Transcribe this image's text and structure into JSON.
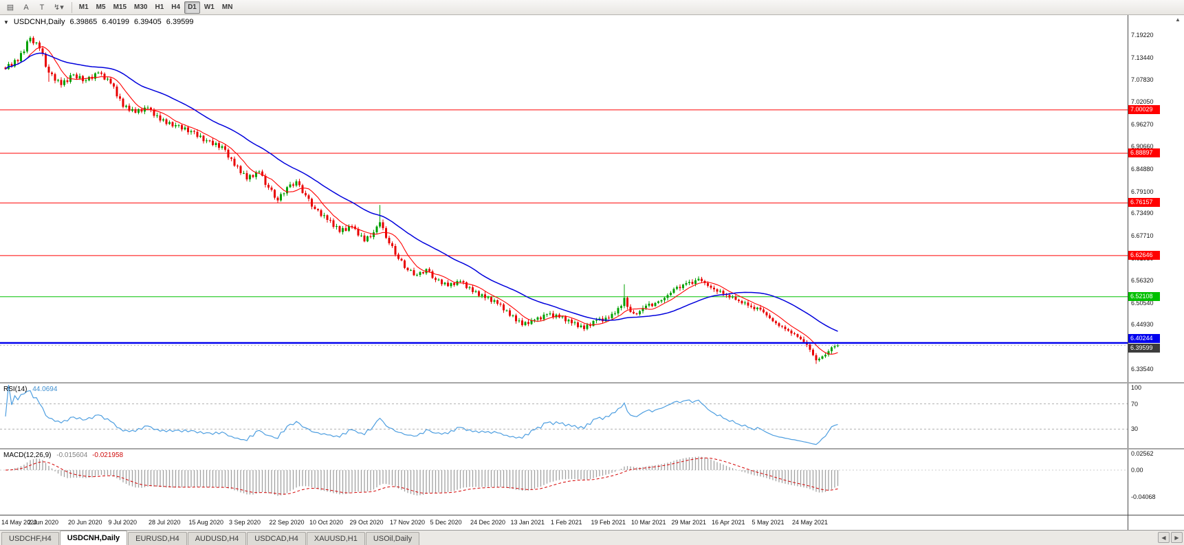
{
  "toolbar": {
    "icon_buttons": [
      {
        "name": "chart-layout-icon",
        "glyph": "▤"
      },
      {
        "name": "text-annotation-icon",
        "glyph": "A"
      },
      {
        "name": "text-tool-icon",
        "glyph": "T"
      },
      {
        "name": "quick-tools-dropdown-icon",
        "glyph": "↯▾"
      }
    ],
    "timeframes": [
      {
        "label": "M1"
      },
      {
        "label": "M5"
      },
      {
        "label": "M15"
      },
      {
        "label": "M30"
      },
      {
        "label": "H1"
      },
      {
        "label": "H4"
      },
      {
        "label": "D1",
        "active": true
      },
      {
        "label": "W1"
      },
      {
        "label": "MN"
      }
    ]
  },
  "chart": {
    "collapse_glyph": "▼",
    "scroll_glyph": "▲",
    "ohlc": {
      "symbol": "USDCNH,Daily",
      "open": "6.39865",
      "high": "6.40199",
      "low": "6.39405",
      "close": "6.39599"
    }
  },
  "rsi_panel": {
    "name": "RSI(14)",
    "value": "44.0694",
    "axis_labels": [
      {
        "text": "100",
        "value": 100
      },
      {
        "text": "70",
        "value": 70
      },
      {
        "text": "30",
        "value": 30
      }
    ]
  },
  "macd_panel": {
    "name": "MACD(12,26,9)",
    "value_main": "-0.015604",
    "value_sig": "-0.021958",
    "axis_labels": [
      {
        "text": "0.02562",
        "value": 0.02562
      },
      {
        "text": "0.00",
        "value": 0
      },
      {
        "text": "-0.04068",
        "value": -0.04068
      }
    ]
  },
  "tabs": {
    "nav_left": "◀",
    "nav_right": "▶",
    "items": [
      {
        "label": "USDCHF,H4"
      },
      {
        "label": "USDCNH,Daily",
        "active": true
      },
      {
        "label": "EURUSD,H4"
      },
      {
        "label": "AUDUSD,H4"
      },
      {
        "label": "USDCAD,H4"
      },
      {
        "label": "XAUUSD,H1"
      },
      {
        "label": "USOil,Daily"
      }
    ]
  },
  "chart_data": {
    "type": "candlestick",
    "symbol": "USDCNH",
    "period": "Daily",
    "price_axis": {
      "labels": [
        "7.19220",
        "7.13440",
        "7.07830",
        "7.02050",
        "6.96270",
        "6.90660",
        "6.84880",
        "6.79100",
        "6.73490",
        "6.67710",
        "6.61930",
        "6.56320",
        "6.50540",
        "6.44930",
        "6.39150",
        "6.33540"
      ]
    },
    "dates": [
      "14 May 2020",
      "2 Jun 2020",
      "20 Jun 2020",
      "9 Jul 2020",
      "28 Jul 2020",
      "15 Aug 2020",
      "3 Sep 2020",
      "22 Sep 2020",
      "10 Oct 2020",
      "29 Oct 2020",
      "17 Nov 2020",
      "5 Dec 2020",
      "24 Dec 2020",
      "13 Jan 2021",
      "1 Feb 2021",
      "19 Feb 2021",
      "10 Mar 2021",
      "29 Mar 2021",
      "16 Apr 2021",
      "5 May 2021",
      "24 May 2021"
    ],
    "date_step": 13,
    "colors": {
      "up": "#00a000",
      "down": "#e80000"
    },
    "ma": {
      "fast_period": 8,
      "slow_period": 32,
      "fast_color": "#ff0000",
      "slow_color": "#0000dc"
    },
    "hlines": [
      {
        "value": 7.00029,
        "label": "7.00029",
        "color": "#ff0000",
        "width": 1
      },
      {
        "value": 6.88897,
        "label": "6.88897",
        "color": "#ff0000",
        "width": 1
      },
      {
        "value": 6.76157,
        "label": "6.76157",
        "color": "#ff0000",
        "width": 1
      },
      {
        "value": 6.62646,
        "label": "6.62646",
        "color": "#ff0000",
        "width": 1
      },
      {
        "value": 6.52108,
        "label": "6.52108",
        "color": "#00c000",
        "width": 1
      },
      {
        "value": 6.40244,
        "label": "6.40244",
        "color": "#0000ee",
        "width": 3,
        "front": true
      }
    ],
    "current_price": {
      "value": 6.39599,
      "label": "6.39599",
      "tag_color": "#3c3c3c"
    },
    "rsi": {
      "period": 14,
      "current": 44.0694,
      "color": "#4d9ee0",
      "levels": [
        70,
        30
      ]
    },
    "macd": {
      "fast": 12,
      "slow": 26,
      "signal": 9,
      "current_main": -0.015604,
      "current_signal": -0.021958,
      "histogram_color": "#a0a0a0",
      "signal_color": "#d40000"
    },
    "wick_overrides": {
      "14": {
        "low": 0.018
      },
      "121": {
        "high": 0.042
      },
      "200": {
        "high": 0.03
      },
      "262": {
        "low": 0.008
      }
    },
    "closes": [
      7.105,
      7.118,
      7.112,
      7.128,
      7.125,
      7.146,
      7.15,
      7.176,
      7.185,
      7.171,
      7.173,
      7.158,
      7.144,
      7.111,
      7.096,
      7.092,
      7.075,
      7.077,
      7.064,
      7.076,
      7.072,
      7.089,
      7.091,
      7.081,
      7.087,
      7.074,
      7.076,
      7.085,
      7.08,
      7.094,
      7.096,
      7.093,
      7.078,
      7.08,
      7.068,
      7.06,
      7.035,
      7.029,
      7.008,
      7.011,
      6.998,
      7.002,
      6.993,
      7.002,
      6.996,
      7.006,
      7.006,
      7.001,
      6.985,
      6.986,
      6.973,
      6.976,
      6.964,
      6.969,
      6.958,
      6.961,
      6.961,
      6.95,
      6.955,
      6.943,
      6.946,
      6.944,
      6.931,
      6.934,
      6.92,
      6.922,
      6.921,
      6.91,
      6.915,
      6.903,
      6.907,
      6.898,
      6.878,
      6.875,
      6.857,
      6.856,
      6.838,
      6.838,
      6.822,
      6.833,
      6.828,
      6.84,
      6.842,
      6.831,
      6.808,
      6.801,
      6.795,
      6.775,
      6.768,
      6.784,
      6.786,
      6.802,
      6.809,
      6.806,
      6.817,
      6.807,
      6.787,
      6.781,
      6.772,
      6.752,
      6.746,
      6.743,
      6.728,
      6.73,
      6.718,
      6.717,
      6.7,
      6.702,
      6.687,
      6.697,
      6.69,
      6.702,
      6.701,
      6.695,
      6.678,
      6.678,
      6.663,
      6.676,
      6.674,
      6.686,
      6.701,
      6.712,
      6.697,
      6.672,
      6.658,
      6.651,
      6.629,
      6.618,
      6.614,
      6.595,
      6.589,
      6.589,
      6.576,
      6.577,
      6.584,
      6.581,
      6.592,
      6.586,
      6.569,
      6.564,
      6.565,
      6.553,
      6.557,
      6.548,
      6.556,
      6.551,
      6.561,
      6.561,
      6.558,
      6.543,
      6.545,
      6.533,
      6.535,
      6.523,
      6.527,
      6.518,
      6.52,
      6.508,
      6.512,
      6.503,
      6.501,
      6.486,
      6.486,
      6.472,
      6.473,
      6.458,
      6.46,
      6.448,
      6.456,
      6.451,
      6.461,
      6.462,
      6.468,
      6.463,
      6.475,
      6.476,
      6.478,
      6.468,
      6.475,
      6.468,
      6.47,
      6.458,
      6.462,
      6.453,
      6.455,
      6.443,
      6.447,
      6.438,
      6.449,
      6.446,
      6.459,
      6.461,
      6.465,
      6.458,
      6.467,
      6.466,
      6.477,
      6.478,
      6.492,
      6.497,
      6.518,
      6.495,
      6.482,
      6.478,
      6.476,
      6.484,
      6.492,
      6.498,
      6.503,
      6.497,
      6.505,
      6.509,
      6.512,
      6.518,
      6.525,
      6.531,
      6.541,
      6.546,
      6.543,
      6.552,
      6.556,
      6.559,
      6.554,
      6.563,
      6.567,
      6.561,
      6.556,
      6.549,
      6.544,
      6.54,
      6.534,
      6.536,
      6.528,
      6.525,
      6.519,
      6.521,
      6.513,
      6.51,
      6.504,
      6.506,
      6.498,
      6.495,
      6.489,
      6.493,
      6.488,
      6.481,
      6.473,
      6.466,
      6.458,
      6.453,
      6.446,
      6.444,
      6.438,
      6.434,
      6.427,
      6.425,
      6.418,
      6.412,
      6.405,
      6.398,
      6.385,
      6.371,
      6.358,
      6.362,
      6.368,
      6.372,
      6.381,
      6.391,
      6.394,
      6.396
    ]
  }
}
